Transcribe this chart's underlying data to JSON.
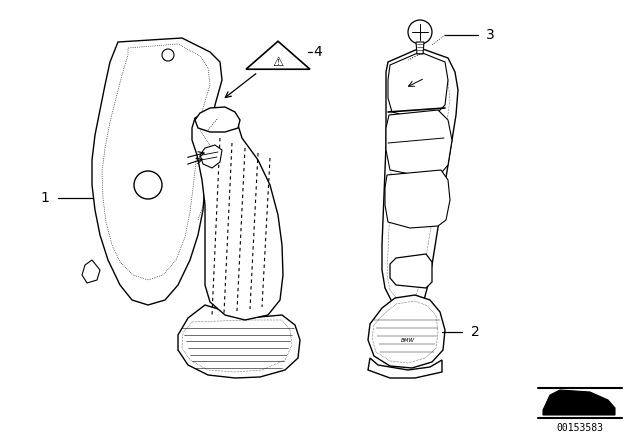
{
  "bg_color": "#ffffff",
  "line_color": "#000000",
  "diagram_code": "00153583",
  "lw_main": 1.0,
  "lw_thin": 0.7,
  "lw_dot": 0.5,
  "face_white": "#ffffff",
  "face_light": "#f0f0f0",
  "face_med": "#e0e0e0",
  "face_dark": "#c8c8c8"
}
